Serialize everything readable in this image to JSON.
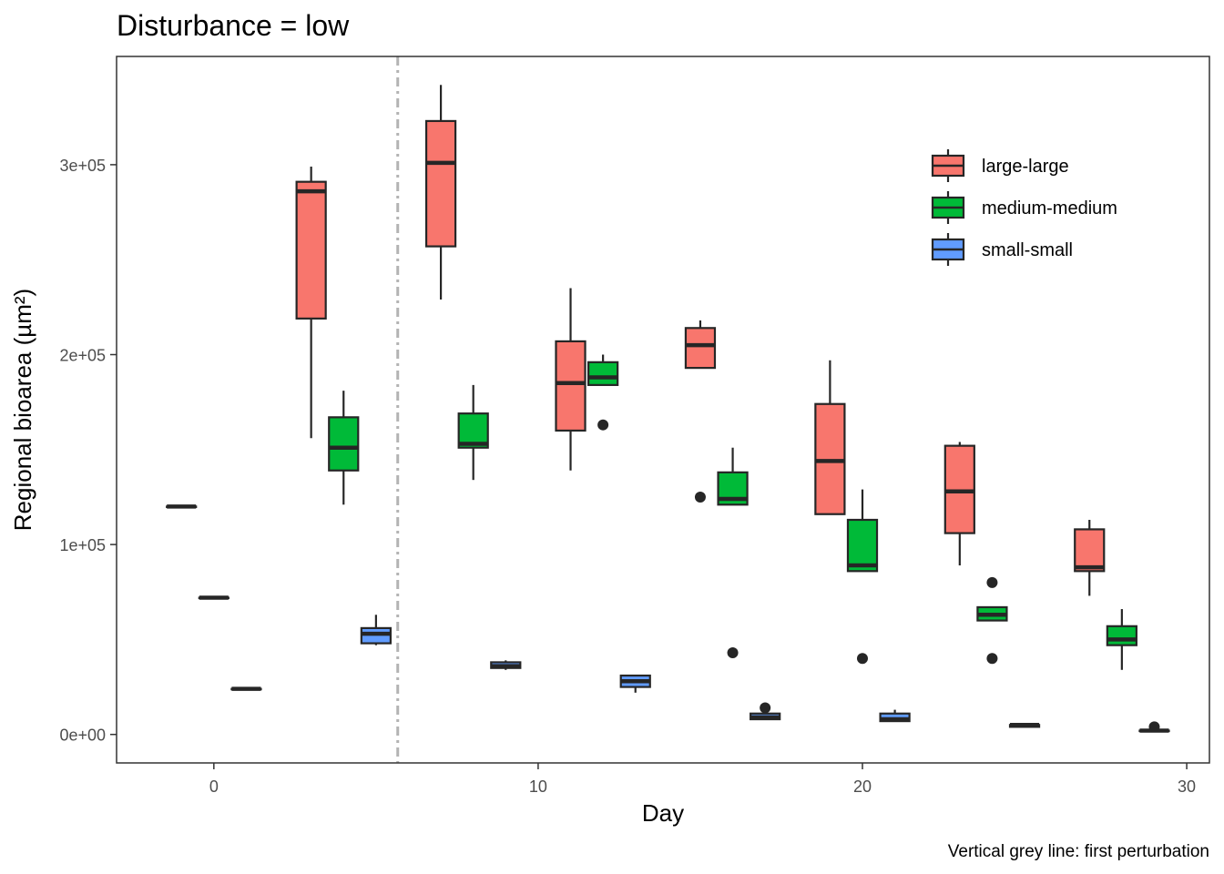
{
  "chart_data": {
    "type": "box",
    "title": "Disturbance = low",
    "xlabel": "Day",
    "ylabel": "Regional bioarea (µm²)",
    "caption": "Vertical grey line: first perturbation",
    "xlim": [
      -3,
      30.7
    ],
    "ylim": [
      -15000,
      357000
    ],
    "x_ticks": [
      0,
      10,
      20,
      30
    ],
    "x_tick_labels": [
      "0",
      "10",
      "20",
      "30"
    ],
    "y_ticks": [
      0,
      100000,
      200000,
      300000
    ],
    "y_tick_labels": [
      "0e+00",
      "1e+05",
      "2e+05",
      "3e+05"
    ],
    "reference_line": {
      "x": 5.67,
      "style": "dotdash",
      "color": "#b3b3b3"
    },
    "legend_position": "top-right",
    "grid": false,
    "series": [
      {
        "name": "large-large",
        "color": "#F8766D",
        "boxes": [
          {
            "day": 0,
            "min": 120000,
            "q1": 120000,
            "median": 120000,
            "q3": 120000,
            "max": 120000
          },
          {
            "day": 4,
            "min": 156000,
            "q1": 219000,
            "median": 286000,
            "q3": 291000,
            "max": 299000
          },
          {
            "day": 8,
            "min": 229000,
            "q1": 257000,
            "median": 301000,
            "q3": 323000,
            "max": 342000
          },
          {
            "day": 12,
            "min": 139000,
            "q1": 160000,
            "median": 185000,
            "q3": 207000,
            "max": 235000
          },
          {
            "day": 16,
            "min": 193000,
            "q1": 193000,
            "median": 205000,
            "q3": 214000,
            "max": 218000,
            "outliers": [
              125000
            ]
          },
          {
            "day": 20,
            "min": 116000,
            "q1": 116000,
            "median": 144000,
            "q3": 174000,
            "max": 197000
          },
          {
            "day": 24,
            "min": 89000,
            "q1": 106000,
            "median": 128000,
            "q3": 152000,
            "max": 154000
          },
          {
            "day": 28,
            "min": 73000,
            "q1": 86000,
            "median": 88000,
            "q3": 108000,
            "max": 113000
          }
        ]
      },
      {
        "name": "medium-medium",
        "color": "#00BA38",
        "boxes": [
          {
            "day": 0,
            "min": 72000,
            "q1": 72000,
            "median": 72000,
            "q3": 72000,
            "max": 72000
          },
          {
            "day": 4,
            "min": 121000,
            "q1": 139000,
            "median": 151000,
            "q3": 167000,
            "max": 181000
          },
          {
            "day": 8,
            "min": 134000,
            "q1": 151000,
            "median": 153000,
            "q3": 169000,
            "max": 184000
          },
          {
            "day": 12,
            "min": 184000,
            "q1": 184000,
            "median": 188000,
            "q3": 196000,
            "max": 200000,
            "outliers": [
              163000
            ]
          },
          {
            "day": 16,
            "min": 121000,
            "q1": 121000,
            "median": 124000,
            "q3": 138000,
            "max": 151000,
            "outliers": [
              43000
            ]
          },
          {
            "day": 20,
            "min": 86000,
            "q1": 86000,
            "median": 89000,
            "q3": 113000,
            "max": 129000,
            "outliers": [
              40000
            ]
          },
          {
            "day": 24,
            "min": 60000,
            "q1": 60000,
            "median": 63000,
            "q3": 67000,
            "max": 67000,
            "outliers": [
              80000,
              40000
            ]
          },
          {
            "day": 28,
            "min": 34000,
            "q1": 47000,
            "median": 50000,
            "q3": 57000,
            "max": 66000
          }
        ]
      },
      {
        "name": "small-small",
        "color": "#619CFF",
        "boxes": [
          {
            "day": 0,
            "min": 24000,
            "q1": 24000,
            "median": 24000,
            "q3": 24000,
            "max": 24000
          },
          {
            "day": 4,
            "min": 47000,
            "q1": 48000,
            "median": 53000,
            "q3": 56000,
            "max": 63000
          },
          {
            "day": 8,
            "min": 34000,
            "q1": 35000,
            "median": 36000,
            "q3": 38000,
            "max": 39000
          },
          {
            "day": 12,
            "min": 22000,
            "q1": 25000,
            "median": 28000,
            "q3": 31000,
            "max": 31000
          },
          {
            "day": 16,
            "min": 8000,
            "q1": 8000,
            "median": 9000,
            "q3": 11000,
            "max": 11000,
            "outliers": [
              14000
            ]
          },
          {
            "day": 20,
            "min": 7000,
            "q1": 7000,
            "median": 8000,
            "q3": 11000,
            "max": 13000
          },
          {
            "day": 24,
            "min": 4000,
            "q1": 4000,
            "median": 5000,
            "q3": 5000,
            "max": 5000
          },
          {
            "day": 28,
            "min": 2000,
            "q1": 2000,
            "median": 2000,
            "q3": 2000,
            "max": 2000,
            "outliers": [
              4000
            ]
          }
        ]
      }
    ]
  }
}
